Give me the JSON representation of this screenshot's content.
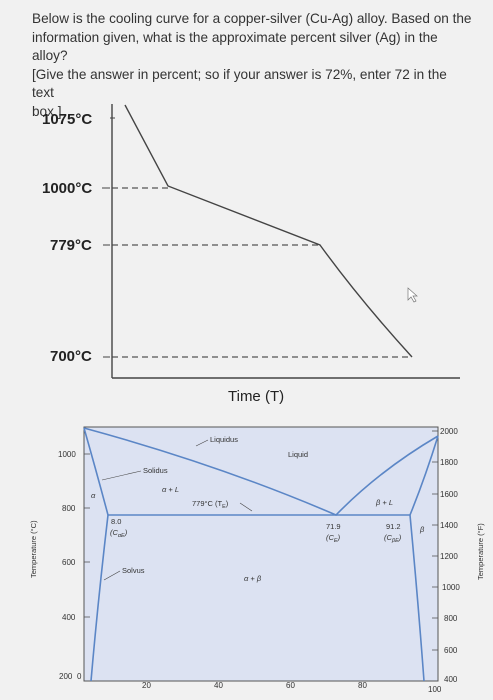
{
  "question": {
    "lines": [
      "Below is the cooling curve for a copper-silver (Cu-Ag) alloy. Based on the",
      "information given, what is the approximate percent silver (Ag) in the alloy?",
      "[Give the answer in percent; so if your answer is 72%, enter 72 in the text",
      "box.]"
    ]
  },
  "cooling_curve": {
    "y_ticks": [
      "1075°C",
      "1000°C",
      "779°C",
      "700°C"
    ],
    "x_label": "Time (T)"
  },
  "phase_diagram": {
    "left_axis_label": "Temperature (°C)",
    "right_axis_label": "Temperature (°F)",
    "left_ticks": [
      "1000",
      "800",
      "600",
      "400",
      "200"
    ],
    "right_ticks": [
      "2000",
      "1800",
      "1600",
      "1400",
      "1200",
      "1000",
      "800",
      "600",
      "400"
    ],
    "x_ticks": [
      "0",
      "20",
      "40",
      "60",
      "80",
      "100"
    ],
    "region_labels": {
      "liquidus": "Liquidus",
      "liquid": "Liquid",
      "solidus": "Solidus",
      "alpha_l": "α + L",
      "beta_l": "β + L",
      "alpha": "α",
      "beta": "β",
      "alpha_beta": "α + β",
      "solvus": "Solvus",
      "eutectic_temp": "779°C (T",
      "eutectic_sub": "E",
      "eutectic_close": ")",
      "alpha_comp": "8.0",
      "alpha_comp_sym": "(C",
      "alpha_comp_sub": "αE",
      "alpha_comp_close": ")",
      "e_comp": "71.9",
      "e_comp_sym": "(C",
      "e_comp_sub": "E",
      "e_comp_close": ")",
      "beta_comp": "91.2",
      "beta_comp_sym": "(C",
      "beta_comp_sub": "βE",
      "beta_comp_close": ")"
    }
  },
  "colors": {
    "diagram_bg": "#dce2f2",
    "phase_line": "#5b86c6",
    "curve": "#444444"
  }
}
